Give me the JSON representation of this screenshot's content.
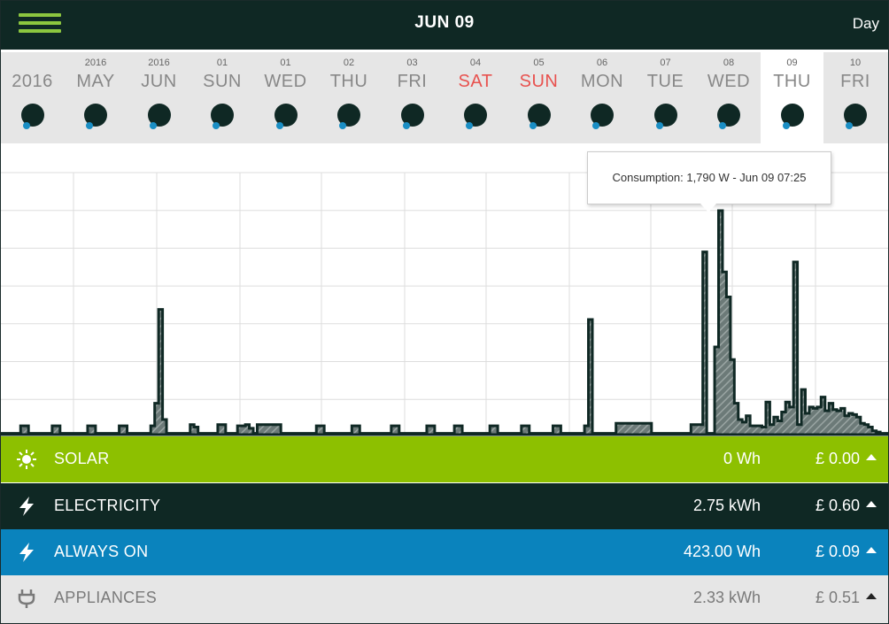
{
  "header": {
    "title": "JUN 09",
    "view_mode": "Day",
    "menu_icon": "hamburger-menu-icon"
  },
  "colors": {
    "header_bg": "#0f2824",
    "accent_green": "#8cc63f",
    "solar": "#8dc000",
    "electricity": "#0f2824",
    "always_on": "#0a83bd",
    "appliances": "#e6e6e6",
    "weekend_text": "#e8524f"
  },
  "date_strip": [
    {
      "small": "",
      "big": "2016",
      "weekend": false,
      "selected": false
    },
    {
      "small": "2016",
      "big": "MAY",
      "weekend": false,
      "selected": false
    },
    {
      "small": "2016",
      "big": "JUN",
      "weekend": false,
      "selected": false
    },
    {
      "small": "01",
      "big": "SUN",
      "weekend": false,
      "selected": false
    },
    {
      "small": "01",
      "big": "WED",
      "weekend": false,
      "selected": false
    },
    {
      "small": "02",
      "big": "THU",
      "weekend": false,
      "selected": false
    },
    {
      "small": "03",
      "big": "FRI",
      "weekend": false,
      "selected": false
    },
    {
      "small": "04",
      "big": "SAT",
      "weekend": true,
      "selected": false
    },
    {
      "small": "05",
      "big": "SUN",
      "weekend": true,
      "selected": false
    },
    {
      "small": "06",
      "big": "MON",
      "weekend": false,
      "selected": false
    },
    {
      "small": "07",
      "big": "TUE",
      "weekend": false,
      "selected": false
    },
    {
      "small": "08",
      "big": "WED",
      "weekend": false,
      "selected": false
    },
    {
      "small": "09",
      "big": "THU",
      "weekend": false,
      "selected": true
    },
    {
      "small": "10",
      "big": "FRI",
      "weekend": false,
      "selected": false
    }
  ],
  "tooltip": {
    "text": "Consumption: 1,790 W - Jun 09 07:25"
  },
  "chart_data": {
    "type": "area",
    "title": "",
    "xlabel": "",
    "ylabel": "",
    "grid": true,
    "series": [
      {
        "name": "Consumption",
        "values": [
          10,
          10,
          10,
          10,
          10,
          70,
          70,
          10,
          10,
          10,
          10,
          10,
          10,
          70,
          70,
          10,
          10,
          10,
          10,
          10,
          10,
          10,
          70,
          70,
          10,
          10,
          10,
          10,
          10,
          10,
          70,
          70,
          10,
          10,
          10,
          10,
          10,
          10,
          70,
          250,
          1000,
          120,
          10,
          10,
          10,
          10,
          10,
          10,
          80,
          60,
          10,
          10,
          10,
          10,
          10,
          80,
          80,
          10,
          10,
          10,
          70,
          70,
          80,
          50,
          10,
          80,
          80,
          80,
          80,
          80,
          80,
          10,
          10,
          10,
          10,
          10,
          10,
          10,
          10,
          10,
          70,
          70,
          10,
          10,
          10,
          10,
          10,
          10,
          10,
          70,
          70,
          10,
          10,
          10,
          10,
          10,
          10,
          10,
          10,
          70,
          70,
          10,
          10,
          10,
          10,
          10,
          10,
          10,
          70,
          70,
          10,
          10,
          10,
          10,
          10,
          70,
          70,
          10,
          10,
          10,
          10,
          10,
          10,
          10,
          70,
          70,
          10,
          10,
          10,
          10,
          10,
          10,
          70,
          70,
          10,
          10,
          10,
          10,
          10,
          10,
          70,
          70,
          10,
          10,
          10,
          10,
          10,
          10,
          70,
          920,
          10,
          10,
          10,
          10,
          10,
          10,
          90,
          90,
          90,
          90,
          90,
          90,
          90,
          90,
          90,
          10,
          10,
          10,
          10,
          10,
          10,
          10,
          10,
          10,
          10,
          80,
          80,
          80,
          1460,
          10,
          10,
          700,
          1790,
          1300,
          1100,
          600,
          250,
          120,
          100,
          150,
          70,
          70,
          70,
          60,
          260,
          80,
          140,
          110,
          180,
          260,
          220,
          1380,
          80,
          360,
          170,
          220,
          210,
          220,
          300,
          190,
          250,
          200,
          190,
          210,
          150,
          170,
          160,
          140,
          90,
          80,
          60,
          30,
          20,
          10,
          10
        ]
      }
    ],
    "peak": {
      "value": 1790,
      "unit": "W",
      "time": "Jun 09 07:25"
    }
  },
  "summary": [
    {
      "key": "solar",
      "icon": "sun-icon",
      "label": "SOLAR",
      "amount": "0 Wh",
      "cost": "£ 0.00"
    },
    {
      "key": "electricity",
      "icon": "lightning-bolt-icon",
      "label": "ELECTRICITY",
      "amount": "2.75 kWh",
      "cost": "£ 0.60"
    },
    {
      "key": "always_on",
      "icon": "lightning-bolt-icon",
      "label": "ALWAYS ON",
      "amount": "423.00 Wh",
      "cost": "£ 0.09"
    },
    {
      "key": "appliances",
      "icon": "plug-icon",
      "label": "APPLIANCES",
      "amount": "2.33 kWh",
      "cost": "£ 0.51"
    }
  ]
}
